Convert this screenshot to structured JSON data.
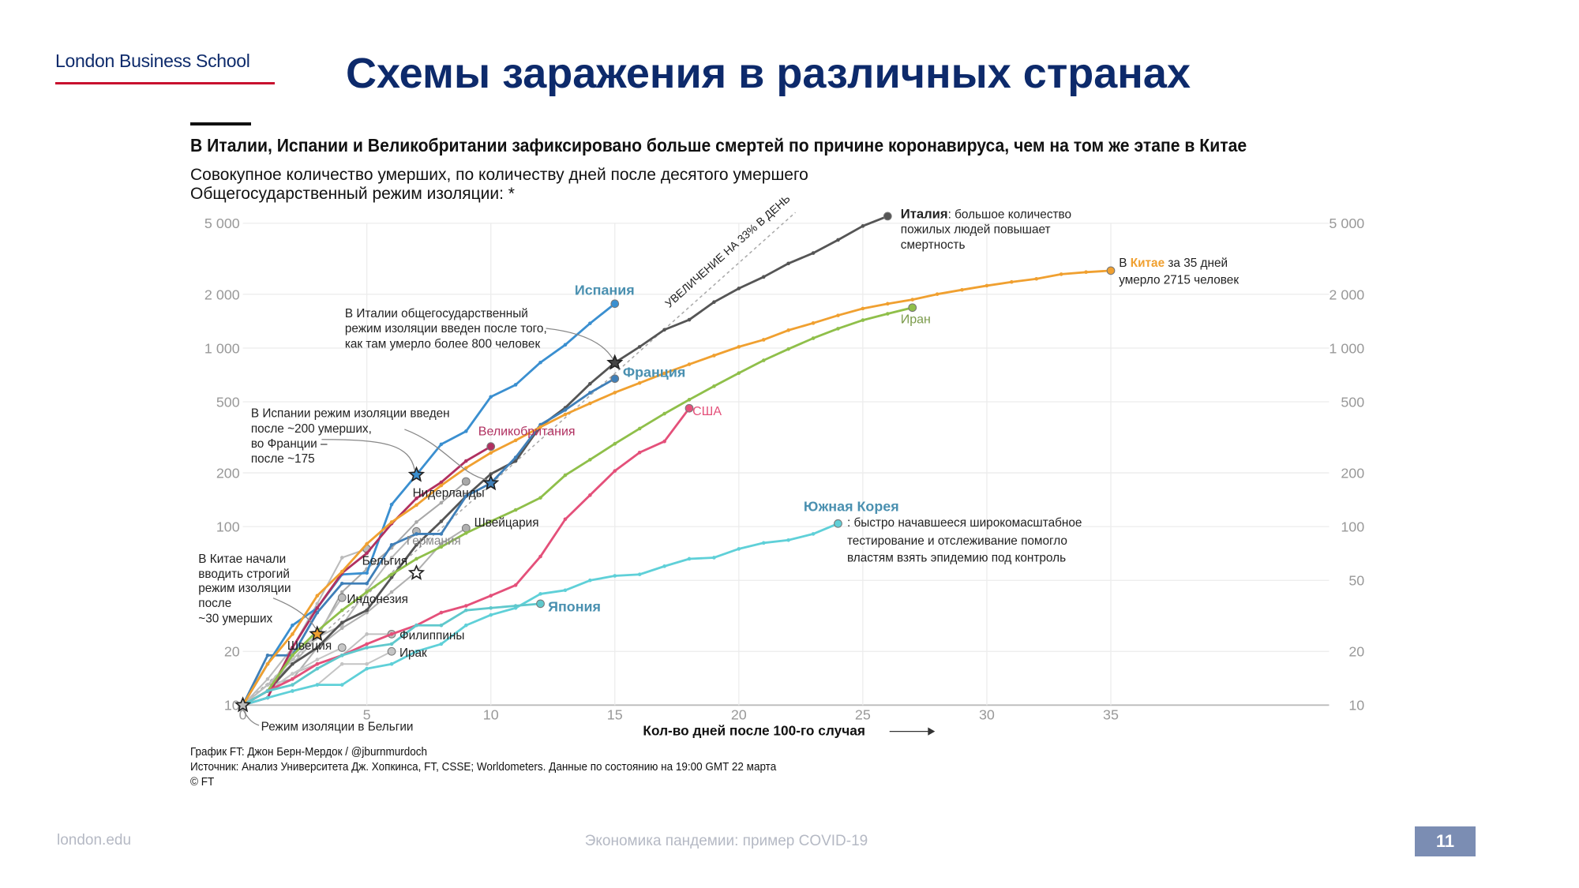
{
  "header": {
    "logo": "London Business School",
    "title": "Схемы заражения в различных странах"
  },
  "chart_data": {
    "type": "line",
    "title": "В Италии, Испании и Великобритании зафиксировано больше смертей по причине коронавируса, чем на том же этапе в Китае",
    "subtitle": [
      "Совокупное количество умерших, по количеству дней после десятого умершего",
      "Общегосударственный режим изоляции: *"
    ],
    "xlabel": "Кол-во дней после 100-го случая",
    "ylabel": "",
    "xlim": [
      0,
      35
    ],
    "ylim": [
      10,
      5000
    ],
    "yscale": "log",
    "grid": true,
    "x_ticks": [
      "0",
      "5",
      "10",
      "15",
      "20",
      "25",
      "30",
      "35"
    ],
    "y_ticks_left": [
      "10",
      "20",
      "100",
      "200",
      "500",
      "1 000",
      "2 000",
      "5 000"
    ],
    "y_ticks_right": [
      "10",
      "20",
      "50",
      "100",
      "200",
      "500",
      "1 000",
      "2 000",
      "5 000"
    ],
    "reference_line": {
      "label": "УВЕЛИЧЕНИЕ НА 33% В ДЕНЬ",
      "daily_growth": 0.33
    },
    "series": [
      {
        "name": "Италия",
        "color": "#555555",
        "values": [
          10,
          12,
          17,
          21,
          29,
          34,
          52,
          79,
          107,
          148,
          197,
          233,
          366,
          463,
          631,
          827,
          1016,
          1266,
          1441,
          1809,
          2158,
          2503,
          2978,
          3405,
          4032,
          4825,
          5476
        ]
      },
      {
        "name": "Испания",
        "color": "#3a8fd0",
        "values": [
          10,
          17,
          28,
          35,
          54,
          55,
          133,
          195,
          289,
          342,
          533,
          623,
          830,
          1043,
          1375,
          1772
        ]
      },
      {
        "name": "Франция",
        "color": "#3f7fb8",
        "values": [
          10,
          19,
          19,
          33,
          48,
          48,
          79,
          91,
          91,
          148,
          175,
          244,
          372,
          450,
          562,
          674
        ]
      },
      {
        "name": "Великобритания",
        "color": "#b03060",
        "values": [
          10,
          11,
          21,
          35,
          55,
          71,
          104,
          144,
          177,
          233,
          281
        ]
      },
      {
        "name": "Китай",
        "color": "#f0a030",
        "values": [
          10,
          17,
          25,
          41,
          56,
          80,
          106,
          132,
          170,
          213,
          259,
          304,
          361,
          425,
          490,
          563,
          637,
          722,
          811,
          908,
          1016,
          1113,
          1259,
          1380,
          1523,
          1665,
          1770,
          1868,
          2004,
          2118,
          2236,
          2345,
          2442,
          2592,
          2663,
          2715
        ]
      },
      {
        "name": "Иран",
        "color": "#8fbf4a",
        "values": [
          10,
          12,
          19,
          26,
          34,
          43,
          54,
          66,
          77,
          92,
          107,
          124,
          145,
          194,
          237,
          291,
          354,
          429,
          514,
          611,
          724,
          853,
          988,
          1135,
          1284,
          1433,
          1556,
          1685
        ]
      },
      {
        "name": "США",
        "color": "#e4507a",
        "values": [
          10,
          12,
          14,
          17,
          19,
          22,
          25,
          28,
          33,
          36,
          41,
          47,
          68,
          110,
          150,
          205,
          260,
          300,
          460
        ]
      },
      {
        "name": "Южная Корея",
        "color": "#5fd0d8",
        "values": [
          10,
          11,
          12,
          13,
          13,
          16,
          17,
          20,
          22,
          28,
          32,
          35,
          42,
          44,
          50,
          53,
          54,
          60,
          66,
          67,
          75,
          81,
          84,
          91,
          104
        ]
      },
      {
        "name": "Япония",
        "color": "#5fc8cc",
        "values": [
          10,
          12,
          13,
          16,
          19,
          21,
          22,
          28,
          28,
          34,
          35,
          36,
          37
        ]
      },
      {
        "name": "Нидерланды",
        "color": "#a8a8a8",
        "values": [
          10,
          12,
          20,
          24,
          43,
          58,
          76,
          106,
          136,
          179
        ]
      },
      {
        "name": "Швейцария",
        "color": "#b0b0b0",
        "values": [
          10,
          13,
          14,
          21,
          27,
          33,
          43,
          56,
          80,
          98
        ]
      },
      {
        "name": "Германия",
        "color": "#b8b8b8",
        "values": [
          10,
          13,
          17,
          24,
          28,
          44,
          67,
          94
        ]
      },
      {
        "name": "Бельгия",
        "color": "#bbbbbb",
        "values": [
          10,
          14,
          21,
          37,
          67,
          75
        ]
      },
      {
        "name": "Индонезия",
        "color": "#bdbdbd",
        "values": [
          10,
          13,
          18,
          25,
          40
        ]
      },
      {
        "name": "Филиппины",
        "color": "#c0c0c0",
        "values": [
          10,
          12,
          15,
          17,
          19,
          25,
          25
        ]
      },
      {
        "name": "Ирак",
        "color": "#c4c4c4",
        "values": [
          10,
          11,
          12,
          13,
          17,
          17,
          20
        ]
      },
      {
        "name": "Швеция",
        "color": "#c6c6c6",
        "values": [
          10,
          12,
          15,
          18,
          21
        ]
      }
    ],
    "lockdowns": [
      {
        "country": "Испания",
        "day": 7,
        "value": 195
      },
      {
        "country": "Франция",
        "day": 10,
        "value": 175
      },
      {
        "country": "Италия",
        "day": 15,
        "value": 827
      },
      {
        "country": "Китай",
        "day": 3,
        "value": 25
      },
      {
        "country": "Бельгия",
        "day": 0,
        "value": 10
      },
      {
        "country": "",
        "day": 7,
        "value": 55
      }
    ],
    "annotations": {
      "italy_bold": "Италия",
      "italy_rest": [
        ": большое количество",
        "пожилых людей повышает",
        "смертность"
      ],
      "china_pre": "В ",
      "china_name": "Китае",
      "china_post": " за 35 дней",
      "china_line2": "умерло 2715 человек",
      "korea": [
        ": быстро начавшееся широкомасштабное",
        "тестирование и отслеживание помогло",
        "властям взять эпидемию под контроль"
      ],
      "italy_lockdown": [
        "В Италии общегосударственный",
        "режим изоляции введен после того,",
        "как там умерло более 800 человек"
      ],
      "spain_lockdown": [
        "В Испании режим изоляции введен",
        "после ~200 умерших,",
        "во Франции –",
        "после ~175"
      ],
      "china_lockdown": [
        "В Китае начали",
        "вводить строгий",
        "режим изоляции",
        "после",
        "~30 умерших"
      ],
      "belgium_lockdown": "Режим изоляции в Бельгии"
    }
  },
  "notes": [
    "График FT: Джон Берн-Мердок / @jburnmurdoch",
    "Источник: Анализ Университета Дж. Хопкинса, FT, CSSE; Worldometers. Данные по состоянию на 19:00 GMT 22 марта",
    "© FT"
  ],
  "footer": {
    "site": "london.edu",
    "course": "Экономика пандемии: пример COVID-19",
    "page": "11"
  }
}
